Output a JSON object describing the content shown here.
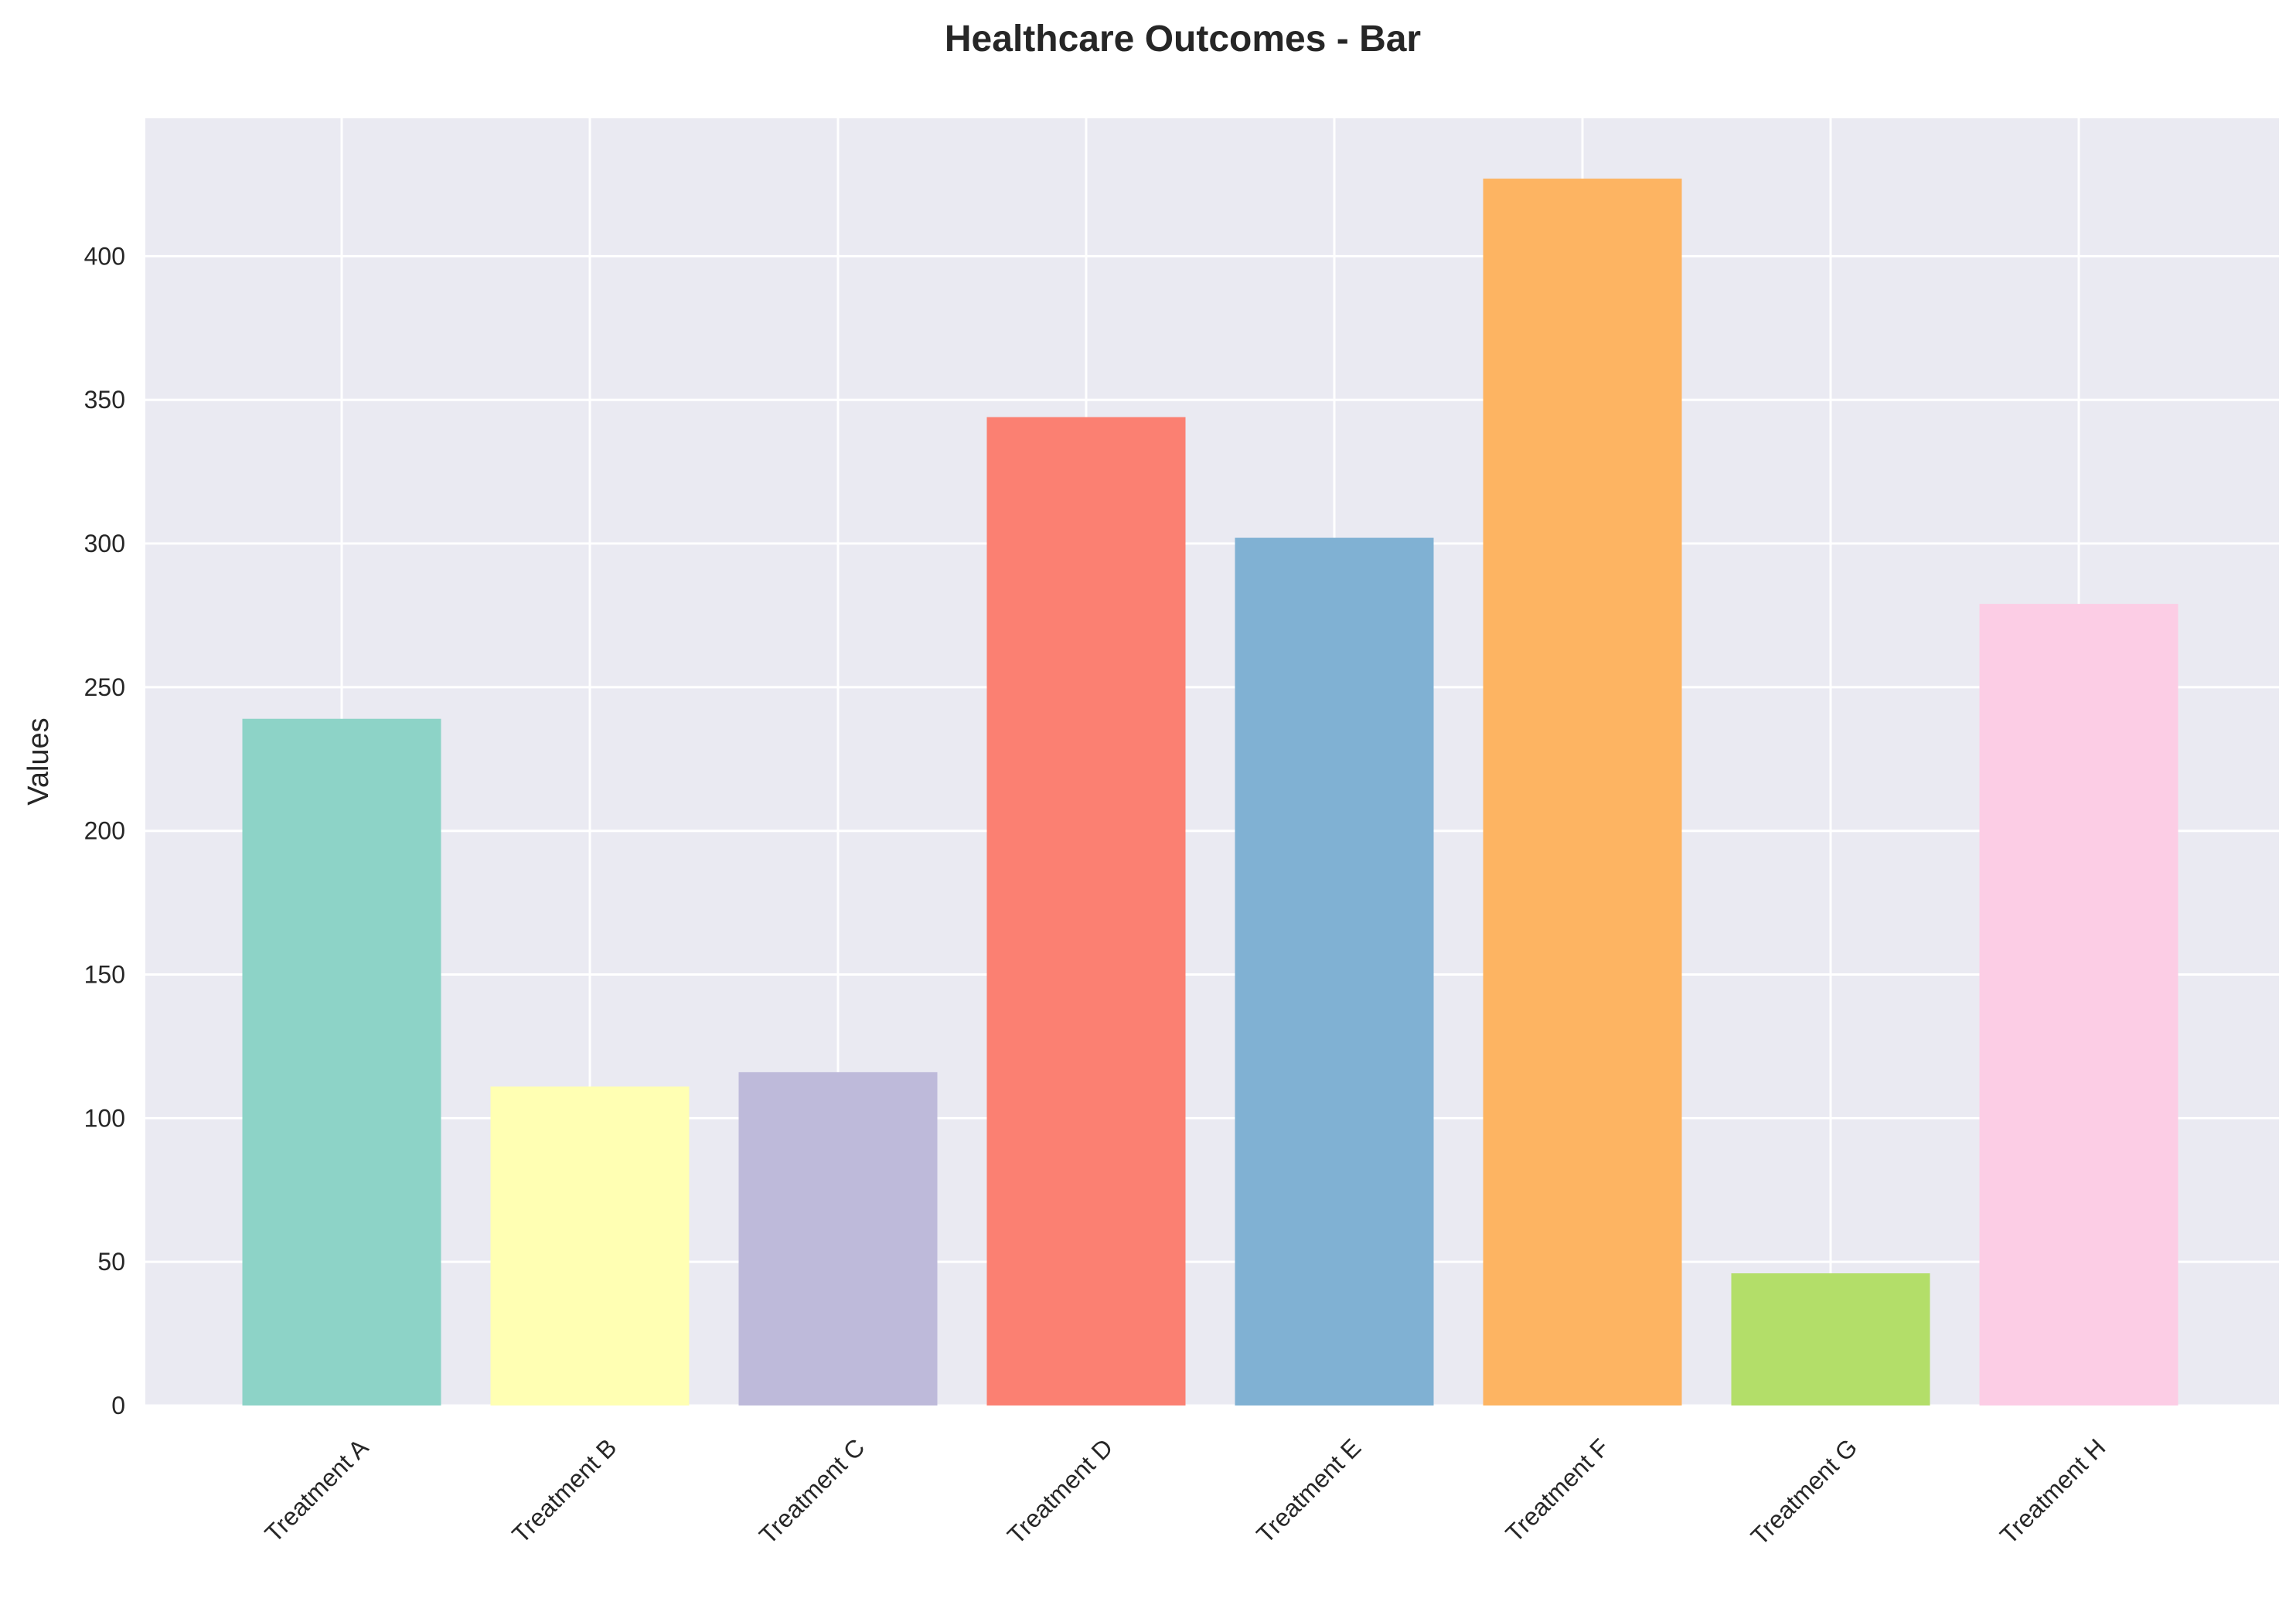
{
  "chart_data": {
    "type": "bar",
    "title": "Healthcare Outcomes - Bar",
    "xlabel": "",
    "ylabel": "Values",
    "categories": [
      "Treatment A",
      "Treatment B",
      "Treatment C",
      "Treatment D",
      "Treatment E",
      "Treatment F",
      "Treatment G",
      "Treatment H"
    ],
    "values": [
      239,
      111,
      116,
      344,
      302,
      427,
      46,
      279
    ],
    "colors": [
      "#8dd3c7",
      "#ffffb3",
      "#bebada",
      "#fb8072",
      "#80b1d3",
      "#fdb462",
      "#b3de69",
      "#fccde5"
    ],
    "ylim": [
      0,
      448
    ],
    "yticks": [
      0,
      50,
      100,
      150,
      200,
      250,
      300,
      350,
      400
    ],
    "grid": true,
    "legend": "none"
  }
}
